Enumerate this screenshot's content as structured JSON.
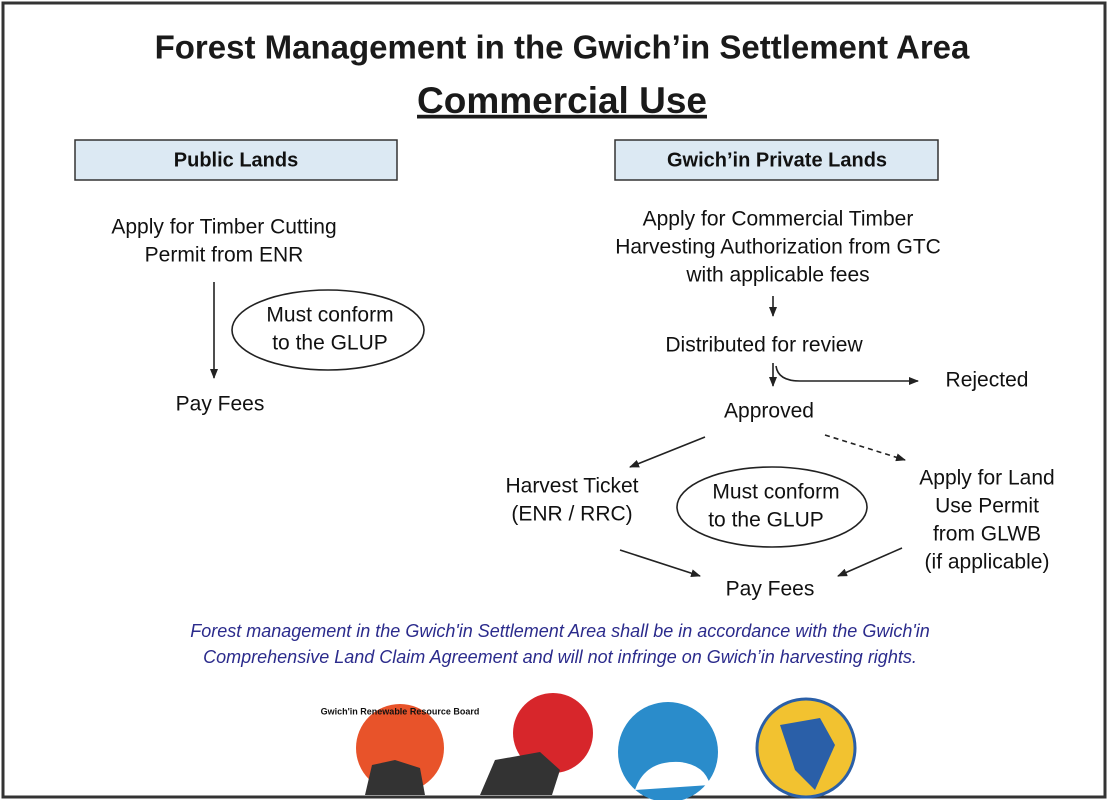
{
  "header": {
    "title": "Forest Management in the Gwich’in Settlement Area",
    "subtitle": "Commercial Use"
  },
  "public_lands": {
    "heading": "Public Lands",
    "apply": [
      "Apply for Timber Cutting",
      "Permit from ENR"
    ],
    "note": [
      "Must conform",
      "to the GLUP"
    ],
    "pay": "Pay Fees"
  },
  "private_lands": {
    "heading": "Gwich’in Private Lands",
    "apply": [
      "Apply for Commercial Timber",
      "Harvesting Authorization from GTC",
      "with applicable fees"
    ],
    "review": "Distributed for review",
    "rejected": "Rejected",
    "approved": "Approved",
    "harvest": [
      "Harvest Ticket",
      "(ENR / RRC)"
    ],
    "note": [
      "Must conform",
      "to the GLUP"
    ],
    "land_use": [
      "Apply for Land",
      "Use Permit",
      "from GLWB",
      "(if applicable)"
    ],
    "pay": "Pay Fees"
  },
  "statement": [
    "Forest management in the Gwich'in Settlement Area shall be in accordance with the Gwich'in",
    "Comprehensive Land Claim Agreement and will not infringe on Gwich’in harvesting rights."
  ],
  "logos": [
    "Gwich'in Renewable Resource Board"
  ]
}
